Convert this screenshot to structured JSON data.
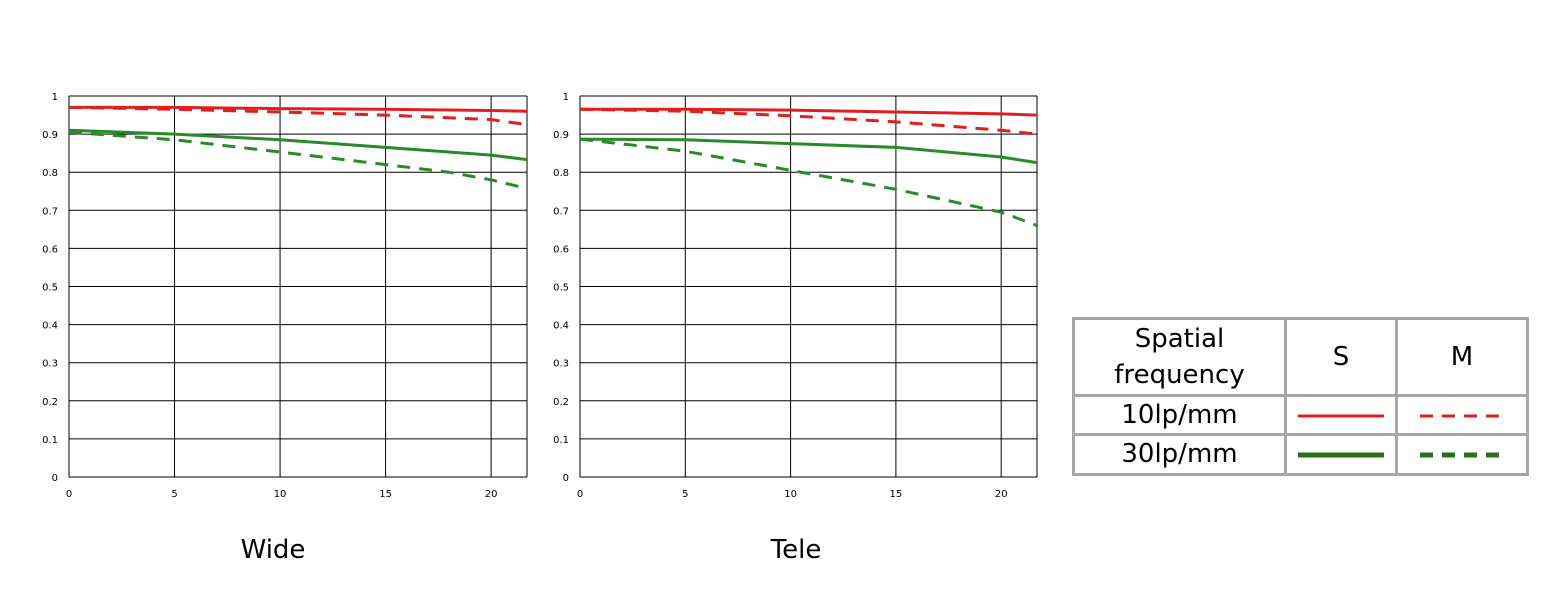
{
  "chart_data": [
    {
      "type": "line",
      "title": "Wide",
      "xlim": [
        0,
        21.7
      ],
      "ylim": [
        0,
        1
      ],
      "x_ticks": [
        "0",
        "5",
        "10",
        "15",
        "20"
      ],
      "y_ticks": [
        "0",
        "0.1",
        "0.2",
        "0.3",
        "0.4",
        "0.5",
        "0.6",
        "0.7",
        "0.8",
        "0.9",
        "1"
      ],
      "grid": true,
      "series": [
        {
          "key": "10S",
          "color": "#e02020",
          "dashed": false,
          "x": [
            0,
            5,
            10,
            15,
            20,
            21.7
          ],
          "y": [
            0.97,
            0.97,
            0.967,
            0.965,
            0.962,
            0.96
          ]
        },
        {
          "key": "10M",
          "color": "#e02020",
          "dashed": true,
          "x": [
            0,
            5,
            10,
            15,
            20,
            21.7
          ],
          "y": [
            0.97,
            0.965,
            0.958,
            0.95,
            0.938,
            0.925
          ]
        },
        {
          "key": "30S",
          "color": "#2a8a2a",
          "dashed": false,
          "x": [
            0,
            5,
            10,
            15,
            20,
            21.7
          ],
          "y": [
            0.91,
            0.9,
            0.885,
            0.865,
            0.845,
            0.833
          ]
        },
        {
          "key": "30M",
          "color": "#2a8a2a",
          "dashed": true,
          "x": [
            0,
            5,
            10,
            15,
            18,
            20,
            21.7
          ],
          "y": [
            0.905,
            0.885,
            0.853,
            0.82,
            0.8,
            0.78,
            0.757
          ]
        }
      ]
    },
    {
      "type": "line",
      "title": "Tele",
      "xlim": [
        0,
        21.7
      ],
      "ylim": [
        0,
        1
      ],
      "x_ticks": [
        "0",
        "5",
        "10",
        "15",
        "20"
      ],
      "y_ticks": [
        "0",
        "0.1",
        "0.2",
        "0.3",
        "0.4",
        "0.5",
        "0.6",
        "0.7",
        "0.8",
        "0.9",
        "1"
      ],
      "grid": true,
      "series": [
        {
          "key": "10S",
          "color": "#e02020",
          "dashed": false,
          "x": [
            0,
            5,
            10,
            15,
            20,
            21.7
          ],
          "y": [
            0.965,
            0.965,
            0.963,
            0.958,
            0.953,
            0.95
          ]
        },
        {
          "key": "10M",
          "color": "#e02020",
          "dashed": true,
          "x": [
            0,
            5,
            10,
            15,
            20,
            21.7
          ],
          "y": [
            0.965,
            0.96,
            0.948,
            0.932,
            0.91,
            0.9
          ]
        },
        {
          "key": "30S",
          "color": "#2a8a2a",
          "dashed": false,
          "x": [
            0,
            5,
            10,
            15,
            20,
            21.7
          ],
          "y": [
            0.887,
            0.885,
            0.875,
            0.865,
            0.84,
            0.825
          ]
        },
        {
          "key": "30M",
          "color": "#2a8a2a",
          "dashed": true,
          "x": [
            0,
            5,
            10,
            15,
            20,
            21.7
          ],
          "y": [
            0.887,
            0.855,
            0.805,
            0.755,
            0.695,
            0.66
          ]
        }
      ]
    }
  ],
  "legend": {
    "header_freq": "Spatial frequency",
    "header_s": "S",
    "header_m": "M",
    "row_10_label": "10lp/mm",
    "row_30_label": "30lp/mm",
    "color_10": "#e02020",
    "color_30": "#2d6e1f"
  }
}
